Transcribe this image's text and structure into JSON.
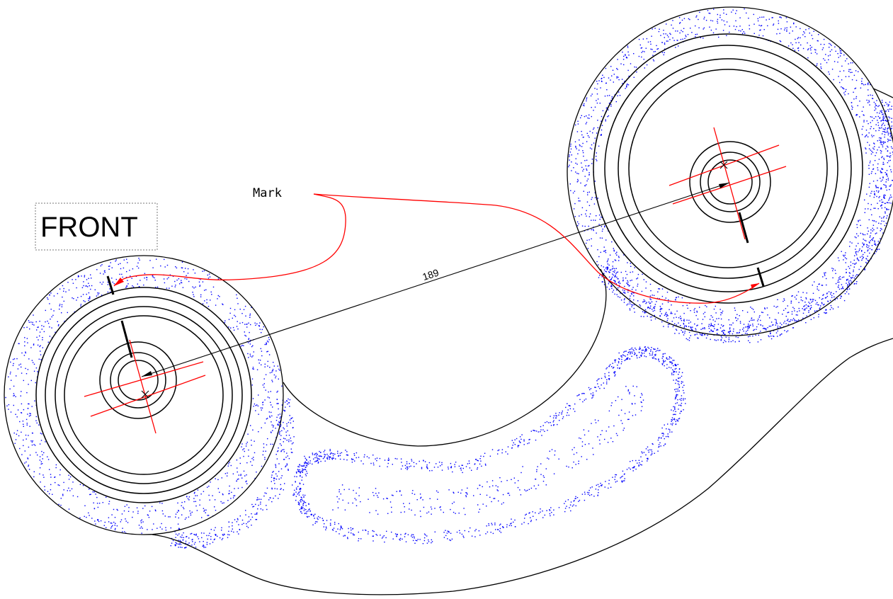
{
  "labels": {
    "front": "FRONT",
    "mark": "Mark",
    "dimension": "189"
  },
  "colors": {
    "outline": "#000000",
    "centerline": "#ff0000",
    "stipple": "#0000ff",
    "background": "#ffffff"
  }
}
